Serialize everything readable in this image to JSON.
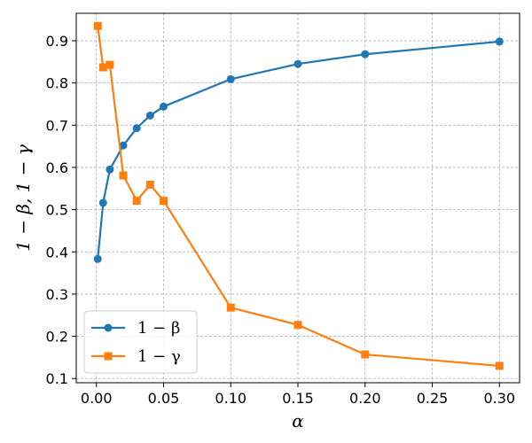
{
  "chart_data": {
    "type": "line",
    "title": "",
    "xlabel": "α",
    "ylabel": "1 − β,   1 − γ",
    "x": [
      0.001,
      0.005,
      0.01,
      0.02,
      0.03,
      0.04,
      0.05,
      0.1,
      0.15,
      0.2,
      0.3
    ],
    "xlim": [
      -0.015,
      0.315
    ],
    "ylim": [
      0.09,
      0.965
    ],
    "xticks": [
      0.0,
      0.05,
      0.1,
      0.15,
      0.2,
      0.25,
      0.3
    ],
    "xtick_labels": [
      "0.00",
      "0.05",
      "0.10",
      "0.15",
      "0.20",
      "0.25",
      "0.30"
    ],
    "yticks": [
      0.1,
      0.2,
      0.3,
      0.4,
      0.5,
      0.6,
      0.7,
      0.8,
      0.9
    ],
    "ytick_labels": [
      "0.1",
      "0.2",
      "0.3",
      "0.4",
      "0.5",
      "0.6",
      "0.7",
      "0.8",
      "0.9"
    ],
    "grid": true,
    "legend_position": "bottom-left",
    "series": [
      {
        "name": "1 − β",
        "color": "#1f77b4",
        "marker": "circle",
        "values": [
          0.383,
          0.516,
          0.595,
          0.652,
          0.693,
          0.723,
          0.744,
          0.809,
          0.845,
          0.868,
          0.898
        ]
      },
      {
        "name": "1 − γ",
        "color": "#ff7f0e",
        "marker": "square",
        "values": [
          0.935,
          0.837,
          0.843,
          0.581,
          0.521,
          0.559,
          0.521,
          0.268,
          0.227,
          0.157,
          0.13
        ]
      }
    ]
  }
}
